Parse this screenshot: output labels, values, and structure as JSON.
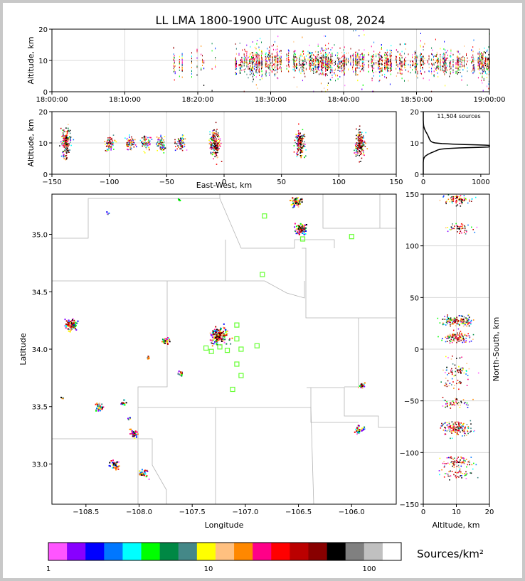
{
  "title": "LL LMA 1800-1900 UTC August 08, 2024",
  "colors": {
    "axis": "#000000",
    "grid": "#d9d9d9",
    "county": "#b4b4b4",
    "station": "#66ff33"
  },
  "chart_data": [
    {
      "id": "time_height",
      "type": "scatter",
      "ylabel": "Altitude, km",
      "xlim": [
        "18:00:00",
        "19:00:00"
      ],
      "ylim": [
        0,
        20
      ],
      "x_ticks": [
        "18:00:00",
        "18:10:00",
        "18:20:00",
        "18:30:00",
        "18:40:00",
        "18:50:00",
        "19:00:00"
      ],
      "y_ticks": [
        "0",
        "10",
        "20"
      ],
      "grid": true
    },
    {
      "id": "ew_height",
      "type": "scatter",
      "xlabel": "East-West, km",
      "ylabel": "Altitude, km",
      "xlim": [
        -150,
        150
      ],
      "ylim": [
        0,
        20
      ],
      "x_ticks": [
        "−150",
        "−100",
        "−50",
        "0",
        "50",
        "100",
        "150"
      ],
      "y_ticks": [
        "0",
        "10",
        "20"
      ],
      "clusters_km": [
        -138,
        -100,
        -82,
        -68,
        -55,
        -38,
        -8,
        66,
        118
      ],
      "grid": true
    },
    {
      "id": "altitude_histogram",
      "type": "line",
      "annotation": "11,504 sources",
      "xlim": [
        0,
        1150
      ],
      "ylim": [
        0,
        20
      ],
      "x_ticks": [
        "0",
        "1000"
      ],
      "y_ticks": [
        "0",
        "10",
        "20"
      ],
      "peak_altitude_km": 9.0,
      "peak_count": 1150
    },
    {
      "id": "plan_view",
      "type": "scatter",
      "xlabel": "Longitude",
      "ylabel": "Latitude",
      "xlim": [
        -108.82,
        -105.58
      ],
      "ylim": [
        32.65,
        35.35
      ],
      "x_ticks": [
        "−108.5",
        "−108.0",
        "−107.5",
        "−107.0",
        "−106.5",
        "−106.0"
      ],
      "y_ticks": [
        "33.0",
        "33.5",
        "34.0",
        "34.5",
        "35.0"
      ],
      "stations": [
        {
          "lon": -106.82,
          "lat": 35.16
        },
        {
          "lon": -106.0,
          "lat": 34.98
        },
        {
          "lon": -106.46,
          "lat": 34.96
        },
        {
          "lon": -106.84,
          "lat": 34.65
        },
        {
          "lon": -107.08,
          "lat": 34.21
        },
        {
          "lon": -107.08,
          "lat": 34.09
        },
        {
          "lon": -107.37,
          "lat": 34.01
        },
        {
          "lon": -107.32,
          "lat": 33.98
        },
        {
          "lon": -107.24,
          "lat": 34.02
        },
        {
          "lon": -107.17,
          "lat": 33.99
        },
        {
          "lon": -107.04,
          "lat": 34.0
        },
        {
          "lon": -106.89,
          "lat": 34.03
        },
        {
          "lon": -107.08,
          "lat": 33.87
        },
        {
          "lon": -107.04,
          "lat": 33.77
        },
        {
          "lon": -107.12,
          "lat": 33.65
        }
      ]
    },
    {
      "id": "height_ns",
      "type": "scatter",
      "xlabel": "Altitude, km",
      "ylabel": "North-South, km",
      "xlim": [
        0,
        20
      ],
      "ylim": [
        -150,
        150
      ],
      "x_ticks": [
        "0",
        "10",
        "20"
      ],
      "y_ticks": [
        "150",
        "100",
        "50",
        "0",
        "−50",
        "−100",
        "−150"
      ],
      "grid": true
    }
  ],
  "colorbar": {
    "label": "Sources/km²",
    "ticks": [
      "1",
      "10",
      "100"
    ],
    "colors": [
      "#ff55ff",
      "#8800ff",
      "#0000ff",
      "#0077ff",
      "#00ffff",
      "#00ff00",
      "#008844",
      "#448888",
      "#ffff00",
      "#ffc080",
      "#ff8800",
      "#ff0088",
      "#ff0000",
      "#bb0000",
      "#880000",
      "#000000",
      "#808080",
      "#c0c0c0",
      "#ffffff"
    ]
  }
}
